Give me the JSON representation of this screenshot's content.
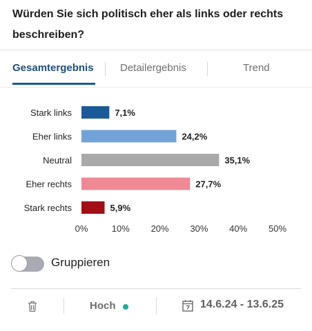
{
  "question": "Würden Sie sich politisch eher als links oder rechts beschreiben?",
  "tabs": [
    {
      "label": "Gesamtergebnis",
      "active": true
    },
    {
      "label": "Detailergebnis",
      "active": false
    },
    {
      "label": "Trend",
      "active": false
    }
  ],
  "chart_data": {
    "type": "bar",
    "orientation": "horizontal",
    "categories": [
      "Stark links",
      "Eher links",
      "Neutral",
      "Eher rechts",
      "Stark rechts"
    ],
    "values": [
      7.1,
      24.2,
      35.1,
      27.7,
      5.9
    ],
    "value_labels": [
      "7,1%",
      "24,2%",
      "35,1%",
      "27,7%",
      "5,9%"
    ],
    "colors": [
      "#1b5a99",
      "#72a3d8",
      "#a9a9a9",
      "#ef8a95",
      "#a30f14"
    ],
    "xlim": [
      0,
      50
    ],
    "xticks": [
      0,
      10,
      20,
      30,
      40,
      50
    ],
    "xtick_labels": [
      "0%",
      "10%",
      "20%",
      "30%",
      "40%",
      "50%"
    ],
    "grid": false
  },
  "toggle": {
    "label": "Gruppieren",
    "on": false
  },
  "footer": {
    "quality_label": "Hoch",
    "quality_color": "#19b09a",
    "date_range": "14.6.24 - 13.6.25"
  }
}
